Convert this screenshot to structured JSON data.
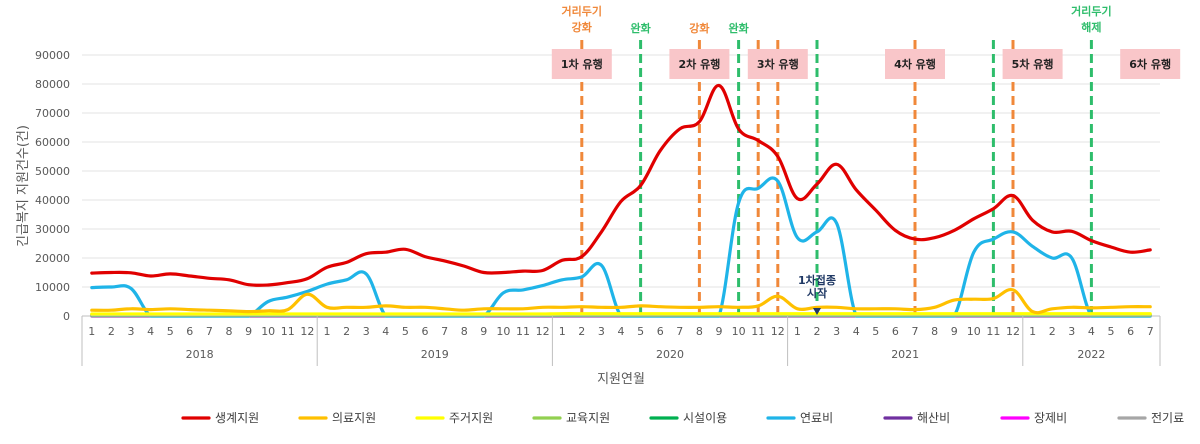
{
  "chart_data": {
    "type": "line",
    "xlabel": "지원연월",
    "ylabel": "긴급복지 지원건수(건)",
    "ylim": [
      0,
      90000
    ],
    "y_ticks": [
      0,
      10000,
      20000,
      30000,
      40000,
      50000,
      60000,
      70000,
      80000,
      90000
    ],
    "grid": "horizontal",
    "legend_position": "bottom",
    "years": [
      {
        "label": "2018",
        "months": 12
      },
      {
        "label": "2019",
        "months": 12
      },
      {
        "label": "2020",
        "months": 12
      },
      {
        "label": "2021",
        "months": 12
      },
      {
        "label": "2022",
        "months": 7
      }
    ],
    "x": [
      "1",
      "2",
      "3",
      "4",
      "5",
      "6",
      "7",
      "8",
      "9",
      "10",
      "11",
      "12",
      "1",
      "2",
      "3",
      "4",
      "5",
      "6",
      "7",
      "8",
      "9",
      "10",
      "11",
      "12",
      "1",
      "2",
      "3",
      "4",
      "5",
      "6",
      "7",
      "8",
      "9",
      "10",
      "11",
      "12",
      "1",
      "2",
      "3",
      "4",
      "5",
      "6",
      "7",
      "8",
      "9",
      "10",
      "11",
      "12",
      "1",
      "2",
      "3",
      "4",
      "5",
      "6",
      "7"
    ],
    "series": [
      {
        "name": "생계지원",
        "color": "#e00000",
        "values": [
          14800,
          15000,
          14900,
          13800,
          14500,
          13800,
          13000,
          12500,
          10800,
          10700,
          11500,
          12900,
          16800,
          18500,
          21500,
          22000,
          23000,
          20500,
          19000,
          17200,
          15000,
          15000,
          15500,
          15700,
          19200,
          20500,
          29000,
          39500,
          45000,
          57000,
          64500,
          67000,
          79500,
          64500,
          60500,
          55000,
          40500,
          45500,
          52300,
          43500,
          36500,
          29500,
          26500,
          27000,
          29500,
          33500,
          37000,
          41500,
          33000,
          29000,
          29200,
          26000,
          23800,
          22000,
          22800
        ]
      },
      {
        "name": "의료지원",
        "color": "#ffc000",
        "values": [
          2000,
          2000,
          2500,
          2200,
          2500,
          2200,
          2000,
          1800,
          1500,
          1800,
          2200,
          7500,
          3000,
          3000,
          3000,
          3500,
          3000,
          3000,
          2500,
          2000,
          2500,
          2500,
          2500,
          3000,
          3000,
          3200,
          3000,
          3000,
          3500,
          3200,
          3000,
          3000,
          3200,
          3000,
          3500,
          6800,
          2500,
          3000,
          3000,
          2500,
          2500,
          2500,
          2200,
          3000,
          5500,
          5800,
          6000,
          9000,
          1500,
          2500,
          3000,
          2800,
          3000,
          3200,
          3200
        ]
      },
      {
        "name": "주거지원",
        "color": "#ffff00",
        "values": [
          700,
          700,
          700,
          700,
          700,
          700,
          700,
          700,
          700,
          700,
          700,
          700,
          700,
          700,
          700,
          700,
          700,
          700,
          700,
          700,
          700,
          700,
          700,
          700,
          800,
          800,
          800,
          800,
          800,
          800,
          800,
          800,
          800,
          800,
          800,
          800,
          800,
          800,
          800,
          800,
          800,
          800,
          800,
          800,
          800,
          800,
          800,
          800,
          800,
          800,
          800,
          800,
          800,
          800,
          800
        ]
      },
      {
        "name": "교육지원",
        "color": "#92d050",
        "values": [
          300,
          300,
          300,
          300,
          300,
          300,
          300,
          300,
          300,
          300,
          300,
          300,
          300,
          300,
          300,
          300,
          300,
          300,
          300,
          300,
          300,
          300,
          300,
          300,
          300,
          300,
          300,
          300,
          300,
          300,
          300,
          300,
          300,
          300,
          300,
          300,
          300,
          300,
          300,
          300,
          300,
          300,
          300,
          300,
          300,
          300,
          300,
          300,
          300,
          300,
          300,
          300,
          300,
          300,
          300
        ]
      },
      {
        "name": "시설이용",
        "color": "#00b050",
        "values": [
          200,
          200,
          200,
          200,
          200,
          200,
          200,
          200,
          200,
          200,
          200,
          200,
          200,
          200,
          200,
          200,
          200,
          200,
          200,
          200,
          200,
          200,
          200,
          200,
          200,
          200,
          200,
          200,
          200,
          200,
          200,
          200,
          200,
          200,
          200,
          200,
          200,
          200,
          200,
          200,
          200,
          200,
          200,
          200,
          200,
          200,
          200,
          200,
          200,
          200,
          200,
          200,
          200,
          200,
          200
        ]
      },
      {
        "name": "연료비",
        "color": "#1fb4e8",
        "values": [
          9800,
          10000,
          9500,
          0,
          0,
          0,
          0,
          0,
          0,
          5000,
          6500,
          8500,
          11000,
          12500,
          14500,
          0,
          0,
          0,
          0,
          0,
          0,
          8000,
          9000,
          10500,
          12500,
          13500,
          17500,
          0,
          0,
          0,
          0,
          0,
          0,
          39000,
          44000,
          46500,
          27000,
          29000,
          32000,
          0,
          0,
          0,
          0,
          0,
          0,
          22000,
          26500,
          29000,
          24000,
          20000,
          20000,
          0,
          0,
          0,
          0
        ]
      },
      {
        "name": "해산비",
        "color": "#7030a0",
        "values": [
          100,
          100,
          100,
          100,
          100,
          100,
          100,
          100,
          100,
          100,
          100,
          100,
          100,
          100,
          100,
          100,
          100,
          100,
          100,
          100,
          100,
          100,
          100,
          100,
          100,
          100,
          100,
          100,
          100,
          100,
          100,
          100,
          100,
          100,
          100,
          100,
          100,
          100,
          100,
          100,
          100,
          100,
          100,
          100,
          100,
          100,
          100,
          100,
          100,
          100,
          100,
          100,
          100,
          100,
          100
        ]
      },
      {
        "name": "장제비",
        "color": "#ff00ff",
        "values": [
          150,
          150,
          150,
          150,
          150,
          150,
          150,
          150,
          150,
          150,
          150,
          150,
          150,
          150,
          150,
          150,
          150,
          150,
          150,
          150,
          150,
          150,
          150,
          150,
          150,
          150,
          150,
          150,
          150,
          150,
          150,
          150,
          150,
          150,
          150,
          150,
          150,
          150,
          150,
          150,
          150,
          150,
          150,
          150,
          150,
          150,
          150,
          150,
          150,
          150,
          150,
          150,
          150,
          150,
          150
        ]
      },
      {
        "name": "전기료",
        "color": "#a6a6a6",
        "values": [
          0,
          0,
          0,
          0,
          0,
          0,
          0,
          0,
          0,
          0,
          0,
          0,
          0,
          0,
          0,
          0,
          0,
          0,
          0,
          0,
          0,
          0,
          0,
          0,
          0,
          0,
          0,
          0,
          0,
          0,
          0,
          0,
          0,
          0,
          0,
          0,
          0,
          0,
          0,
          0,
          0,
          0,
          0,
          0,
          0,
          0,
          0,
          0,
          0,
          0,
          0,
          0,
          0,
          0,
          0
        ]
      }
    ],
    "policy_lines": [
      {
        "label": [
          "거리두기",
          "강화"
        ],
        "type": "strengthen",
        "color": "#f0883a",
        "year": "2020",
        "month": 2
      },
      {
        "label": [
          "완화"
        ],
        "type": "relax",
        "color": "#2ebd6b",
        "year": "2020",
        "month": 5
      },
      {
        "label": [
          "강화"
        ],
        "type": "strengthen",
        "color": "#f0883a",
        "year": "2020",
        "month": 8
      },
      {
        "label": [
          "완화"
        ],
        "type": "relax",
        "color": "#2ebd6b",
        "year": "2020",
        "month": 10
      },
      {
        "label": [],
        "type": "strengthen",
        "color": "#f0883a",
        "year": "2020",
        "month": 11
      },
      {
        "label": [],
        "type": "strengthen",
        "color": "#f0883a",
        "year": "2020",
        "month": 12
      },
      {
        "label": [],
        "type": "relax",
        "color": "#2ebd6b",
        "year": "2021",
        "month": 2
      },
      {
        "label": [],
        "type": "strengthen",
        "color": "#f0883a",
        "year": "2021",
        "month": 7
      },
      {
        "label": [],
        "type": "relax",
        "color": "#2ebd6b",
        "year": "2021",
        "month": 11
      },
      {
        "label": [],
        "type": "strengthen",
        "color": "#f0883a",
        "year": "2021",
        "month": 12
      },
      {
        "label": [
          "거리두기",
          "해제"
        ],
        "type": "relax",
        "color": "#2ebd6b",
        "year": "2022",
        "month": 4
      }
    ],
    "waves": [
      {
        "label": "1차 유행",
        "year": "2020",
        "month": 2
      },
      {
        "label": "2차 유행",
        "year": "2020",
        "month": 8
      },
      {
        "label": "3차 유행",
        "year": "2020",
        "month": 12
      },
      {
        "label": "4차 유행",
        "year": "2021",
        "month": 7
      },
      {
        "label": "5차 유행",
        "year": "2022",
        "month": 1
      },
      {
        "label": "6차 유행",
        "year": "2022",
        "month": 7
      }
    ],
    "wave_label_bg": "#f9c6c9",
    "vaccination_annotation": {
      "lines": [
        "1차접종",
        "시작"
      ],
      "year": "2021",
      "month": 2
    }
  }
}
